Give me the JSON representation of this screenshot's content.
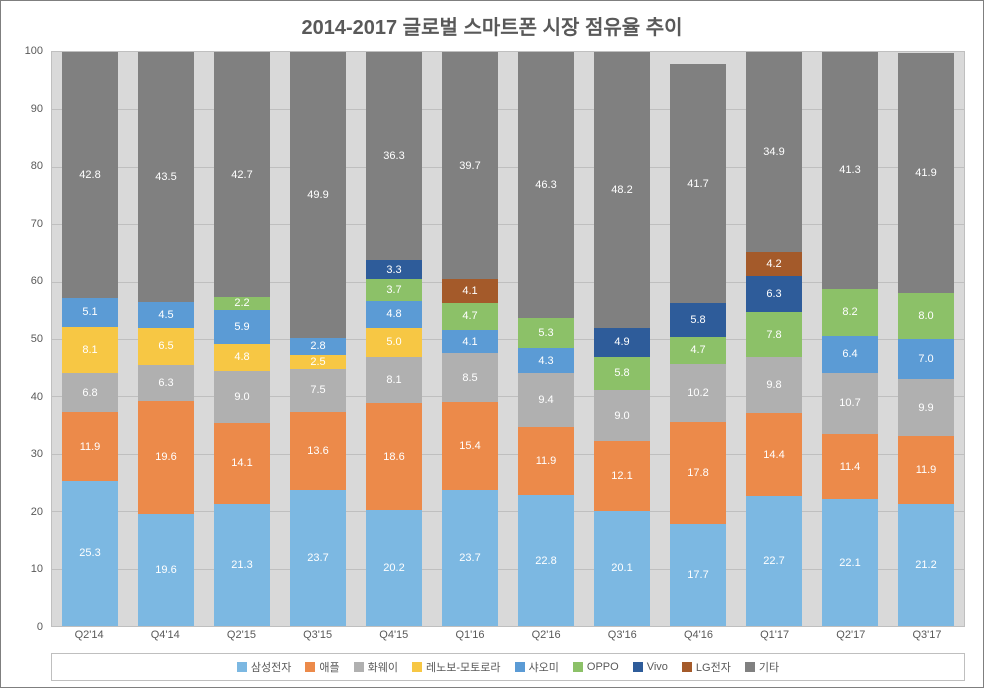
{
  "chart": {
    "type": "stacked-bar",
    "title": "2014-2017 글로벌 스마트폰 시장 점유율 추이",
    "title_fontsize": 20,
    "title_color": "#595959",
    "background_color": "#ffffff",
    "plot_background_color": "#d9d9d9",
    "grid_color": "#bfbfbf",
    "border_color": "#7f7f7f",
    "ylim": [
      0,
      100
    ],
    "ytick_step": 10,
    "label_fontsize": 11,
    "data_label_color": "#ffffff",
    "min_label_value": 2.0,
    "categories": [
      "Q2'14",
      "Q4'14",
      "Q2'15",
      "Q3'15",
      "Q4'15",
      "Q1'16",
      "Q2'16",
      "Q3'16",
      "Q4'16",
      "Q1'17",
      "Q2'17",
      "Q3'17"
    ],
    "series": [
      {
        "name": "삼성전자",
        "color": "#7cb8e2"
      },
      {
        "name": "애플",
        "color": "#ec8a4a"
      },
      {
        "name": "화웨이",
        "color": "#b0b0b0"
      },
      {
        "name": "레노보-모토로라",
        "color": "#f7c744"
      },
      {
        "name": "샤오미",
        "color": "#5b9bd5"
      },
      {
        "name": "OPPO",
        "color": "#8cc168"
      },
      {
        "name": "Vivo",
        "color": "#2e5c9a"
      },
      {
        "name": "LG전자",
        "color": "#a45a2a"
      },
      {
        "name": "기타",
        "color": "#808080"
      }
    ],
    "values": [
      [
        25.3,
        11.9,
        6.8,
        8.1,
        5.1,
        null,
        null,
        null,
        42.8
      ],
      [
        19.6,
        19.6,
        6.3,
        6.5,
        4.5,
        null,
        null,
        null,
        43.5
      ],
      [
        21.3,
        14.1,
        9.0,
        4.8,
        5.9,
        2.2,
        null,
        null,
        42.7
      ],
      [
        23.7,
        13.6,
        7.5,
        2.5,
        2.8,
        null,
        null,
        null,
        49.9
      ],
      [
        20.2,
        18.6,
        8.1,
        5.0,
        4.8,
        3.7,
        3.3,
        null,
        36.3
      ],
      [
        23.7,
        15.4,
        8.5,
        null,
        4.1,
        4.7,
        null,
        4.1,
        39.7
      ],
      [
        22.8,
        11.9,
        9.4,
        null,
        4.3,
        5.3,
        null,
        null,
        46.3
      ],
      [
        20.1,
        12.1,
        9.0,
        null,
        null,
        5.8,
        4.9,
        null,
        48.2
      ],
      [
        17.7,
        17.8,
        10.2,
        null,
        null,
        4.7,
        5.8,
        null,
        41.7
      ],
      [
        22.7,
        14.4,
        9.8,
        null,
        null,
        7.8,
        6.3,
        4.2,
        34.9
      ],
      [
        22.1,
        11.4,
        10.7,
        null,
        6.4,
        8.2,
        null,
        null,
        41.3
      ],
      [
        21.2,
        11.9,
        9.9,
        null,
        7.0,
        8.0,
        null,
        null,
        41.9
      ]
    ]
  }
}
